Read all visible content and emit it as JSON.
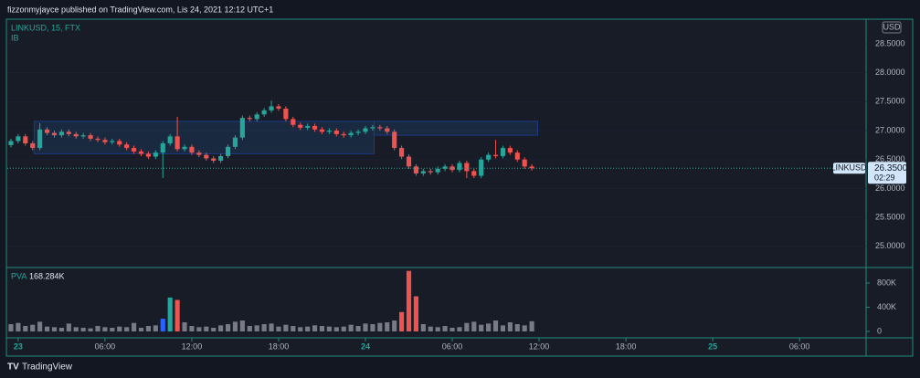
{
  "header": "fizzonmyjayce published on TradingView.com, Lis 24, 2021 12:12 UTC+1",
  "brand": "TradingView",
  "chart_data": {
    "type": "candlestick",
    "title": "LINKUSD, 15, FTX",
    "indicator": "IB",
    "currency": "USD",
    "symbol": "LINKUSD",
    "countdown": "02:29",
    "last_price": {
      "value": 26.35,
      "label": "26.3500"
    },
    "up_color": "#26a69a",
    "down_color": "#ef5350",
    "x": [
      -0.5,
      0,
      0.5,
      1,
      1.5,
      2,
      2.5,
      3,
      3.5,
      4,
      4.5,
      5,
      5.5,
      6,
      6.5,
      7,
      7.5,
      8,
      8.5,
      9,
      9.5,
      10,
      10.5,
      11,
      11.5,
      12,
      12.5,
      13,
      13.5,
      14,
      14.5,
      15,
      15.5,
      16,
      16.5,
      17,
      17.5,
      18,
      18.5,
      19,
      19.5,
      20,
      20.5,
      21,
      21.5,
      22,
      22.5,
      23,
      23.5,
      24,
      24.5,
      25,
      25.5,
      26,
      26.5,
      27,
      27.5,
      28,
      28.5,
      29,
      29.5,
      30,
      30.5,
      31,
      31.5,
      32,
      32.5,
      33,
      33.5,
      34,
      34.5,
      35,
      35.5
    ],
    "open": [
      26.75,
      26.82,
      26.9,
      26.78,
      26.7,
      27.02,
      26.96,
      26.92,
      26.98,
      26.94,
      26.9,
      26.92,
      26.86,
      26.84,
      26.8,
      26.82,
      26.76,
      26.7,
      26.64,
      26.6,
      26.55,
      26.62,
      26.78,
      26.9,
      26.68,
      26.72,
      26.62,
      26.58,
      26.52,
      26.48,
      26.56,
      26.72,
      26.88,
      27.22,
      27.2,
      27.28,
      27.35,
      27.42,
      27.38,
      27.2,
      27.1,
      27.05,
      27.08,
      27.02,
      26.98,
      27.0,
      26.94,
      26.92,
      26.96,
      26.98,
      27.04,
      27.06,
      27.04,
      26.98,
      26.7,
      26.55,
      26.38,
      26.26,
      26.3,
      26.28,
      26.34,
      26.38,
      26.32,
      26.44,
      26.3,
      26.22,
      26.5,
      26.58,
      26.56,
      26.7,
      26.62,
      26.5,
      26.38
    ],
    "high": [
      26.86,
      26.94,
      26.94,
      26.82,
      27.13,
      27.06,
      27.0,
      27.02,
      27.02,
      26.98,
      26.96,
      26.96,
      26.9,
      26.88,
      26.86,
      26.86,
      26.8,
      26.74,
      26.68,
      26.64,
      26.66,
      26.82,
      26.94,
      27.24,
      26.76,
      26.76,
      26.66,
      26.62,
      26.56,
      26.6,
      26.76,
      26.92,
      27.26,
      27.26,
      27.32,
      27.39,
      27.52,
      27.46,
      27.42,
      27.24,
      27.14,
      27.12,
      27.12,
      27.06,
      27.04,
      27.04,
      26.98,
      27.0,
      27.02,
      27.08,
      27.1,
      27.1,
      27.08,
      27.02,
      26.74,
      26.59,
      26.42,
      26.34,
      26.34,
      26.38,
      26.42,
      26.42,
      26.48,
      26.48,
      26.34,
      26.54,
      26.62,
      26.84,
      26.74,
      26.74,
      26.66,
      26.54,
      26.42
    ],
    "low": [
      26.71,
      26.78,
      26.74,
      26.66,
      26.66,
      26.92,
      26.88,
      26.88,
      26.9,
      26.86,
      26.86,
      26.82,
      26.8,
      26.76,
      26.76,
      26.72,
      26.66,
      26.6,
      26.56,
      26.51,
      26.51,
      26.18,
      26.74,
      26.64,
      26.64,
      26.58,
      26.54,
      26.48,
      26.44,
      26.44,
      26.52,
      26.68,
      26.84,
      27.16,
      27.16,
      27.24,
      27.31,
      27.34,
      27.16,
      27.06,
      27.01,
      27.01,
      26.98,
      26.94,
      26.94,
      26.9,
      26.88,
      26.88,
      26.92,
      26.94,
      27.0,
      27.0,
      26.94,
      26.66,
      26.51,
      26.34,
      26.22,
      26.22,
      26.24,
      26.24,
      26.3,
      26.28,
      26.28,
      26.18,
      26.18,
      26.18,
      26.46,
      26.52,
      26.52,
      26.58,
      26.46,
      26.34,
      26.31
    ],
    "close": [
      26.82,
      26.9,
      26.78,
      26.7,
      27.02,
      26.96,
      26.92,
      26.98,
      26.94,
      26.9,
      26.92,
      26.86,
      26.84,
      26.8,
      26.82,
      26.76,
      26.7,
      26.64,
      26.6,
      26.55,
      26.62,
      26.78,
      26.9,
      26.68,
      26.72,
      26.62,
      26.58,
      26.52,
      26.48,
      26.56,
      26.72,
      26.88,
      27.22,
      27.2,
      27.28,
      27.35,
      27.42,
      27.38,
      27.2,
      27.1,
      27.05,
      27.08,
      27.02,
      26.98,
      27.0,
      26.94,
      26.92,
      26.96,
      26.98,
      27.04,
      27.06,
      27.04,
      26.98,
      26.7,
      26.55,
      26.38,
      26.26,
      26.3,
      26.28,
      26.34,
      26.38,
      26.32,
      26.44,
      26.3,
      26.22,
      26.5,
      26.58,
      26.56,
      26.7,
      26.62,
      26.5,
      26.38,
      26.35
    ],
    "ib_boxes": [
      {
        "x": [
          1.1,
          24.6
        ],
        "y": [
          26.6,
          27.16
        ]
      },
      {
        "x": [
          24.6,
          35.9
        ],
        "y": [
          26.92,
          27.16
        ]
      }
    ],
    "xlim": [
      -0.75,
      58.6
    ],
    "xticks": [
      {
        "value": 0,
        "label": "23"
      },
      {
        "value": 6,
        "label": "06:00"
      },
      {
        "value": 12,
        "label": "12:00"
      },
      {
        "value": 18,
        "label": "18:00"
      },
      {
        "value": 24,
        "label": "24"
      },
      {
        "value": 30,
        "label": "06:00"
      },
      {
        "value": 36,
        "label": "12:00"
      },
      {
        "value": 42,
        "label": "18:00"
      },
      {
        "value": 48,
        "label": "25"
      },
      {
        "value": 54,
        "label": "06:00"
      }
    ],
    "ylim": [
      24.65,
      28.91
    ],
    "yticks": [
      {
        "value": 25,
        "label": "25.0000"
      },
      {
        "value": 25.5,
        "label": "25.5000"
      },
      {
        "value": 26,
        "label": "26.0000"
      },
      {
        "value": 26.5,
        "label": "26.5000"
      },
      {
        "value": 27,
        "label": "27.0000"
      },
      {
        "value": 27.5,
        "label": "27.5000"
      },
      {
        "value": 28,
        "label": "28.0000"
      },
      {
        "value": 28.5,
        "label": "28.5000"
      }
    ],
    "volume_title": "PVA",
    "volume_last_label": "168.284K",
    "volume": [
      120,
      140,
      90,
      110,
      160,
      80,
      70,
      60,
      130,
      70,
      60,
      50,
      90,
      70,
      60,
      80,
      70,
      140,
      60,
      90,
      100,
      210,
      560,
      520,
      150,
      90,
      70,
      80,
      60,
      100,
      120,
      160,
      180,
      90,
      100,
      120,
      130,
      80,
      110,
      90,
      70,
      80,
      100,
      90,
      80,
      70,
      80,
      110,
      90,
      130,
      120,
      140,
      150,
      180,
      320,
      1000,
      580,
      120,
      80,
      70,
      90,
      60,
      70,
      140,
      160,
      110,
      130,
      180,
      100,
      150,
      120,
      100,
      168.284
    ],
    "vlim": [
      -106,
      1041
    ],
    "vticks": [
      0,
      {
        "value": 400,
        "label": "400K"
      },
      {
        "value": 800,
        "label": "800K"
      }
    ]
  }
}
